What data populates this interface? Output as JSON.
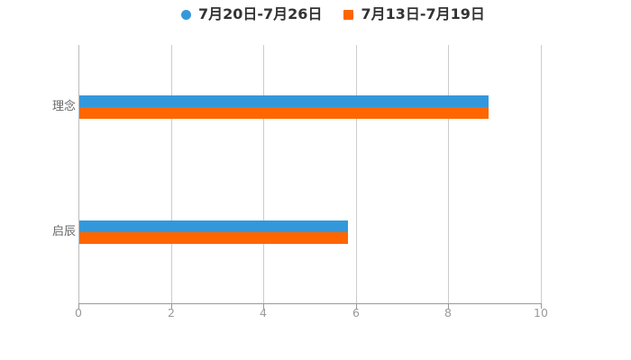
{
  "chart_data": {
    "type": "bar",
    "orientation": "horizontal",
    "title": "",
    "xlabel": "",
    "ylabel": "",
    "categories": [
      "理念",
      "启辰"
    ],
    "series": [
      {
        "name": "7月20日-7月26日",
        "color": "#3398DB",
        "marker": "circle",
        "values": [
          8.85,
          5.8
        ]
      },
      {
        "name": "7月13日-7月19日",
        "color": "#FF6600",
        "marker": "square",
        "values": [
          8.85,
          5.8
        ]
      }
    ],
    "xlim": [
      0,
      10
    ],
    "x_ticks": [
      0,
      2,
      4,
      6,
      8,
      10
    ],
    "grid": true,
    "legend_position": "top",
    "background": "#FFFFFF",
    "colors": {
      "gridline": "#cccccc",
      "axis_line": "#999999",
      "tick_label": "#999999",
      "category_label": "#666666",
      "legend_text": "#333333"
    }
  }
}
